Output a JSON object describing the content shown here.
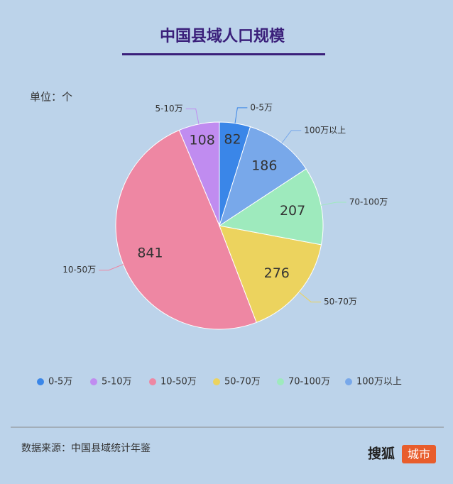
{
  "title": "中国县域人口规模",
  "unit": "单位：个",
  "chart_data": {
    "type": "pie",
    "categories": [
      "0-5万",
      "5-10万",
      "10-50万",
      "50-70万",
      "70-100万",
      "100万以上"
    ],
    "values": [
      82,
      108,
      841,
      276,
      207,
      186
    ],
    "colors": [
      "#3a86e8",
      "#c08cf0",
      "#ee87a3",
      "#ecd35e",
      "#9eeabd",
      "#78a8ea"
    ],
    "legend": "bottom"
  },
  "footer": {
    "source": "数据来源：中国县域统计年鉴",
    "logo": "搜狐",
    "logo_badge": "城市"
  }
}
